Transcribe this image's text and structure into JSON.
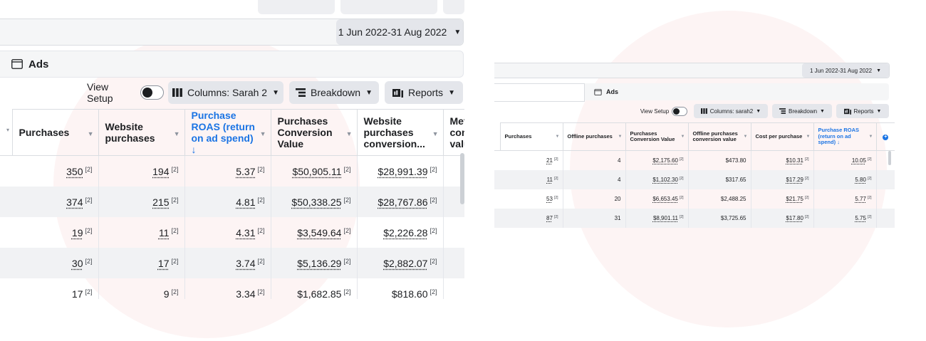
{
  "left": {
    "date_range": "1 Jun 2022-31 Aug 2022",
    "ads_tab": "Ads",
    "view_setup": "View Setup",
    "columns_btn": "Columns: Sarah 2",
    "breakdown_btn": "Breakdown",
    "reports_btn": "Reports",
    "headers": [
      "Purchases",
      "Website purchases",
      "Purchase ROAS (return on ad spend)",
      "Purchases Conversion Value",
      "Website purchases conversion...",
      "Met conv valu"
    ],
    "rows": [
      [
        "350",
        "194",
        "5.37",
        "$50,905.11",
        "$28,991.39"
      ],
      [
        "374",
        "215",
        "4.81",
        "$50,338.25",
        "$28,767.86"
      ],
      [
        "19",
        "11",
        "4.31",
        "$3,549.64",
        "$2,226.28"
      ],
      [
        "30",
        "17",
        "3.74",
        "$5,136.29",
        "$2,882.07"
      ],
      [
        "17",
        "9",
        "3.34",
        "$1,682.85",
        "$818.60"
      ]
    ],
    "footnote": "[2]",
    "sort_arrow": "↓"
  },
  "right": {
    "date_range": "1 Jun 2022-31 Aug 2022",
    "ads_tab": "Ads",
    "view_setup": "View Setup",
    "columns_btn": "Columns: sarah2",
    "breakdown_btn": "Breakdown",
    "reports_btn": "Reports",
    "headers": [
      "Purchases",
      "Offline purchases",
      "Purchases Conversion Value",
      "Offline purchases conversion value",
      "Cost per purchase",
      "Purchase ROAS (return on ad spend)"
    ],
    "rows": [
      [
        "21",
        "4",
        "$2,175.60",
        "$473.80",
        "$10.31",
        "10.05"
      ],
      [
        "11",
        "4",
        "$1,102.30",
        "$317.65",
        "$17.29",
        "5.80"
      ],
      [
        "53",
        "20",
        "$6,653.45",
        "$2,488.25",
        "$21.75",
        "5.77"
      ],
      [
        "87",
        "31",
        "$8,901.11",
        "$3,725.65",
        "$17.80",
        "5.75"
      ]
    ],
    "footnote": "[2]",
    "sort_arrow": "↓",
    "plus": "+"
  },
  "icons": {
    "ads": "ads-window-icon",
    "columns": "columns-icon",
    "breakdown": "breakdown-icon",
    "reports": "reports-icon"
  },
  "colors": {
    "accent": "#1b74e4",
    "alt_row": "#f1f2f4",
    "button": "#e4e6eb"
  }
}
